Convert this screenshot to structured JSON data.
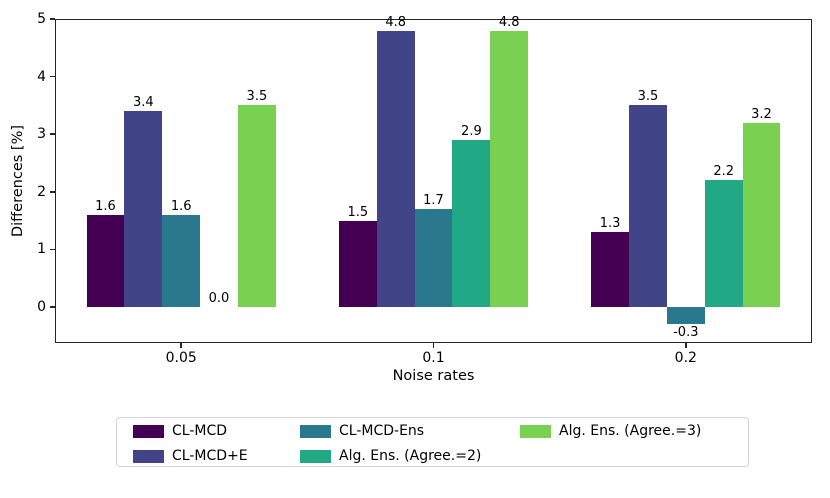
{
  "chart_data": {
    "type": "bar",
    "title": "",
    "xlabel": "Noise rates",
    "ylabel": "Differences [%]",
    "categories": [
      "0.05",
      "0.1",
      "0.2"
    ],
    "series": [
      {
        "name": "CL-MCD",
        "color": "#440154",
        "values": [
          1.6,
          1.5,
          1.3
        ]
      },
      {
        "name": "CL-MCD+E",
        "color": "#414487",
        "values": [
          3.4,
          4.8,
          3.5
        ]
      },
      {
        "name": "CL-MCD-Ens",
        "color": "#2a788e",
        "values": [
          1.6,
          1.7,
          -0.3
        ]
      },
      {
        "name": "Alg. Ens. (Agree.=2)",
        "color": "#22a884",
        "values": [
          0.0,
          2.9,
          2.2
        ]
      },
      {
        "name": "Alg. Ens. (Agree.=3)",
        "color": "#7ad151",
        "values": [
          3.5,
          4.8,
          3.2
        ]
      }
    ],
    "bar_value_labels": [
      [
        "1.6",
        "3.4",
        "1.6",
        "0.0",
        "3.5"
      ],
      [
        "1.5",
        "4.8",
        "1.7",
        "2.9",
        "4.8"
      ],
      [
        "1.3",
        "3.5",
        "-0.3",
        "2.2",
        "3.2"
      ]
    ],
    "y_ticks": [
      "0",
      "1",
      "2",
      "3",
      "4",
      "5"
    ],
    "x_ticks": [
      "0.05",
      "0.1",
      "0.2"
    ],
    "ylim": [
      -0.63,
      5.0
    ],
    "grid": false,
    "legend_position": "lower center",
    "legend_columns": 3,
    "spine_color": "#262626",
    "background_color": "#ffffff"
  }
}
